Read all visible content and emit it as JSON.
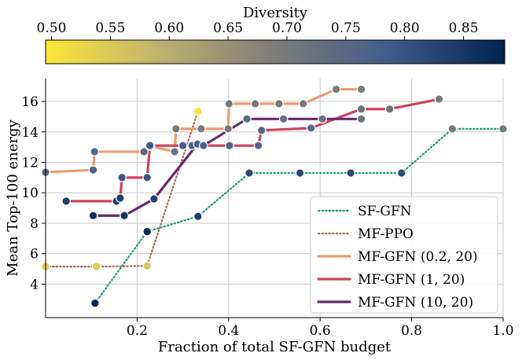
{
  "chart_data": {
    "type": "line",
    "title": "",
    "xlabel": "Fraction of total SF-GFN budget",
    "ylabel": "Mean Top-100 energy",
    "xlim": [
      0.0,
      1.0
    ],
    "ylim": [
      1.8,
      17.5
    ],
    "x_ticks": [
      0.2,
      0.4,
      0.6,
      0.8,
      1.0
    ],
    "x_tick_labels": [
      "0.2",
      "0.4",
      "0.6",
      "0.8",
      "1.0"
    ],
    "y_ticks": [
      4,
      6,
      8,
      10,
      12,
      14,
      16
    ],
    "y_tick_labels": [
      "4",
      "6",
      "8",
      "10",
      "12",
      "14",
      "16"
    ],
    "grid": true,
    "legend_position": "bottom-right",
    "colorbar": {
      "label": "Diversity",
      "min": 0.495,
      "max": 0.885,
      "ticks": [
        0.5,
        0.55,
        0.6,
        0.65,
        0.7,
        0.75,
        0.8,
        0.85
      ],
      "tick_labels": [
        "0.50",
        "0.55",
        "0.60",
        "0.65",
        "0.70",
        "0.75",
        "0.80",
        "0.85"
      ],
      "colormap": "cividis-reversed",
      "colors": [
        "#fde737",
        "#bfb170",
        "#7d7c78",
        "#405c8a",
        "#00224e"
      ]
    },
    "series": [
      {
        "name": "SF-GFN",
        "line_color": "#1a9e76",
        "line_style": "dotted",
        "points": [
          {
            "x": 0.108,
            "y": 2.75,
            "d": 0.88
          },
          {
            "x": 0.222,
            "y": 7.45,
            "d": 0.87
          },
          {
            "x": 0.333,
            "y": 8.45,
            "d": 0.84
          },
          {
            "x": 0.445,
            "y": 11.3,
            "d": 0.82
          },
          {
            "x": 0.556,
            "y": 11.3,
            "d": 0.82
          },
          {
            "x": 0.667,
            "y": 11.3,
            "d": 0.82
          },
          {
            "x": 0.778,
            "y": 11.3,
            "d": 0.82
          },
          {
            "x": 0.889,
            "y": 14.2,
            "d": 0.7
          },
          {
            "x": 1.0,
            "y": 14.2,
            "d": 0.7
          }
        ]
      },
      {
        "name": "MF-PPO",
        "line_color": "#a46b5c",
        "line_style": "dotted",
        "points": [
          {
            "x": 0.0,
            "y": 5.15,
            "d": 0.54
          },
          {
            "x": 0.111,
            "y": 5.15,
            "d": 0.54
          },
          {
            "x": 0.222,
            "y": 5.2,
            "d": 0.55
          },
          {
            "x": 0.333,
            "y": 15.35,
            "d": 0.5
          }
        ]
      },
      {
        "name": "MF-GFN (0.2, 20)",
        "line_color": "#ee9a6e",
        "line_style": "solid",
        "points": [
          {
            "x": 0.0,
            "y": 11.35,
            "d": 0.76
          },
          {
            "x": 0.104,
            "y": 11.5,
            "d": 0.76
          },
          {
            "x": 0.107,
            "y": 12.7,
            "d": 0.76
          },
          {
            "x": 0.215,
            "y": 12.7,
            "d": 0.75
          },
          {
            "x": 0.23,
            "y": 13.05,
            "d": 0.74
          },
          {
            "x": 0.282,
            "y": 12.7,
            "d": 0.72
          },
          {
            "x": 0.285,
            "y": 14.2,
            "d": 0.7
          },
          {
            "x": 0.34,
            "y": 14.2,
            "d": 0.7
          },
          {
            "x": 0.399,
            "y": 14.2,
            "d": 0.7
          },
          {
            "x": 0.401,
            "y": 15.85,
            "d": 0.7
          },
          {
            "x": 0.458,
            "y": 15.85,
            "d": 0.7
          },
          {
            "x": 0.51,
            "y": 15.85,
            "d": 0.7
          },
          {
            "x": 0.563,
            "y": 15.85,
            "d": 0.7
          },
          {
            "x": 0.635,
            "y": 16.8,
            "d": 0.7
          },
          {
            "x": 0.69,
            "y": 16.8,
            "d": 0.7
          }
        ]
      },
      {
        "name": "MF-GFN (1, 20)",
        "line_color": "#c9445d",
        "line_style": "solid",
        "points": [
          {
            "x": 0.045,
            "y": 9.45,
            "d": 0.84
          },
          {
            "x": 0.155,
            "y": 9.45,
            "d": 0.84
          },
          {
            "x": 0.163,
            "y": 9.65,
            "d": 0.84
          },
          {
            "x": 0.167,
            "y": 11.0,
            "d": 0.8
          },
          {
            "x": 0.222,
            "y": 11.0,
            "d": 0.8
          },
          {
            "x": 0.228,
            "y": 13.1,
            "d": 0.79
          },
          {
            "x": 0.3,
            "y": 13.1,
            "d": 0.78
          },
          {
            "x": 0.32,
            "y": 13.1,
            "d": 0.77
          },
          {
            "x": 0.402,
            "y": 13.1,
            "d": 0.76
          },
          {
            "x": 0.465,
            "y": 13.1,
            "d": 0.76
          },
          {
            "x": 0.472,
            "y": 14.1,
            "d": 0.75
          },
          {
            "x": 0.58,
            "y": 14.25,
            "d": 0.75
          },
          {
            "x": 0.69,
            "y": 15.5,
            "d": 0.72
          },
          {
            "x": 0.752,
            "y": 15.5,
            "d": 0.71
          },
          {
            "x": 0.86,
            "y": 16.15,
            "d": 0.7
          }
        ]
      },
      {
        "name": "MF-GFN (10, 20)",
        "line_color": "#6a2a6e",
        "line_style": "solid",
        "points": [
          {
            "x": 0.104,
            "y": 8.5,
            "d": 0.86
          },
          {
            "x": 0.172,
            "y": 8.5,
            "d": 0.85
          },
          {
            "x": 0.237,
            "y": 9.6,
            "d": 0.83
          },
          {
            "x": 0.332,
            "y": 13.2,
            "d": 0.77
          },
          {
            "x": 0.345,
            "y": 13.1,
            "d": 0.77
          },
          {
            "x": 0.44,
            "y": 14.85,
            "d": 0.74
          },
          {
            "x": 0.52,
            "y": 14.85,
            "d": 0.73
          },
          {
            "x": 0.605,
            "y": 14.85,
            "d": 0.72
          },
          {
            "x": 0.69,
            "y": 14.85,
            "d": 0.71
          }
        ]
      }
    ]
  }
}
